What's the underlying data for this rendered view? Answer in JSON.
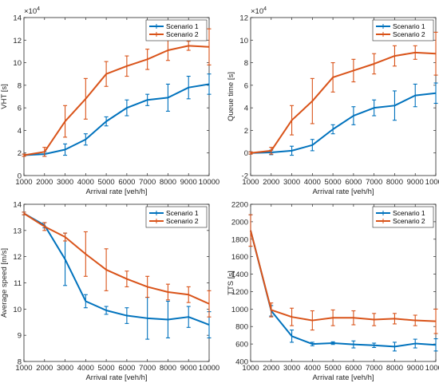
{
  "chart_data": [
    {
      "type": "line",
      "xlabel": "Arrival rate [veh/h]",
      "ylabel": "VHT [s]",
      "exponent_label": "×10",
      "exponent_power": "4",
      "xlim": [
        1000,
        10000
      ],
      "ylim": [
        0,
        14
      ],
      "xticks": [
        1000,
        2000,
        3000,
        4000,
        5000,
        6000,
        7000,
        8000,
        9000,
        10000
      ],
      "yticks": [
        0,
        2,
        4,
        6,
        8,
        10,
        12,
        14
      ],
      "grid": false,
      "legend_position": "top-right",
      "x": [
        1000,
        2000,
        3000,
        4000,
        5000,
        6000,
        7000,
        8000,
        9000,
        10000
      ],
      "series": [
        {
          "name": "Scenario 1",
          "color": "#0072BD",
          "values": [
            1.8,
            1.9,
            2.3,
            3.2,
            4.8,
            6.0,
            6.7,
            6.9,
            7.8,
            8.1
          ],
          "errors": [
            0.1,
            0.2,
            0.5,
            0.5,
            0.4,
            0.7,
            0.5,
            1.2,
            1.0,
            0.9
          ]
        },
        {
          "name": "Scenario 2",
          "color": "#D95319",
          "values": [
            1.8,
            2.1,
            4.8,
            6.8,
            9.0,
            9.7,
            10.3,
            11.1,
            11.5,
            11.4
          ],
          "errors": [
            0.1,
            0.4,
            1.4,
            1.8,
            1.1,
            0.9,
            0.9,
            0.9,
            0.4,
            1.6
          ]
        }
      ]
    },
    {
      "type": "line",
      "xlabel": "Arrival rate [veh/h]",
      "ylabel": "Queue time [s]",
      "exponent_label": "×10",
      "exponent_power": "4",
      "xlim": [
        1000,
        10000
      ],
      "ylim": [
        -2,
        12
      ],
      "xticks": [
        1000,
        2000,
        3000,
        4000,
        5000,
        6000,
        7000,
        8000,
        9000,
        10000
      ],
      "yticks": [
        -2,
        0,
        2,
        4,
        6,
        8,
        10,
        12
      ],
      "grid": false,
      "legend_position": "top-right",
      "x": [
        1000,
        2000,
        3000,
        4000,
        5000,
        6000,
        7000,
        8000,
        9000,
        10000
      ],
      "series": [
        {
          "name": "Scenario 1",
          "color": "#0072BD",
          "values": [
            0.0,
            0.05,
            0.2,
            0.7,
            2.1,
            3.3,
            4.0,
            4.2,
            5.1,
            5.3
          ],
          "errors": [
            0.1,
            0.2,
            0.4,
            0.5,
            0.4,
            0.8,
            0.7,
            1.3,
            1.0,
            0.9
          ]
        },
        {
          "name": "Scenario 2",
          "color": "#D95319",
          "values": [
            0.0,
            0.2,
            2.9,
            4.6,
            6.7,
            7.3,
            7.9,
            8.6,
            8.9,
            8.8
          ],
          "errors": [
            0.1,
            0.3,
            1.3,
            2.0,
            1.3,
            1.0,
            0.9,
            0.9,
            0.6,
            1.9
          ]
        }
      ]
    },
    {
      "type": "line",
      "xlabel": "Arrival rate [veh/h]",
      "ylabel": "Average speed [m/s]",
      "xlim": [
        1000,
        10000
      ],
      "ylim": [
        8,
        14
      ],
      "xticks": [
        1000,
        2000,
        3000,
        4000,
        5000,
        6000,
        7000,
        8000,
        9000,
        10000
      ],
      "yticks": [
        8,
        9,
        10,
        11,
        12,
        13,
        14
      ],
      "grid": false,
      "legend_position": "top-right",
      "x": [
        1000,
        2000,
        3000,
        4000,
        5000,
        6000,
        7000,
        8000,
        9000,
        10000
      ],
      "series": [
        {
          "name": "Scenario 1",
          "color": "#0072BD",
          "values": [
            13.65,
            13.2,
            11.9,
            10.3,
            9.95,
            9.75,
            9.65,
            9.6,
            9.7,
            9.4
          ],
          "errors": [
            0.05,
            0.1,
            1.0,
            0.25,
            0.15,
            0.3,
            0.8,
            0.7,
            0.4,
            0.5
          ]
        },
        {
          "name": "Scenario 2",
          "color": "#D95319",
          "values": [
            13.65,
            13.15,
            12.75,
            12.1,
            11.5,
            11.15,
            10.85,
            10.65,
            10.55,
            10.2
          ],
          "errors": [
            0.05,
            0.15,
            0.15,
            0.85,
            0.8,
            0.3,
            0.4,
            0.3,
            0.3,
            0.5
          ]
        }
      ]
    },
    {
      "type": "line",
      "xlabel": "Arrival rate [veh/h]",
      "ylabel": "TTS [s]",
      "xlim": [
        1000,
        10000
      ],
      "ylim": [
        400,
        2200
      ],
      "xticks": [
        1000,
        2000,
        3000,
        4000,
        5000,
        6000,
        7000,
        8000,
        9000,
        10000
      ],
      "yticks": [
        400,
        600,
        800,
        1000,
        1200,
        1400,
        1600,
        1800,
        2000,
        2200
      ],
      "grid": false,
      "legend_position": "top-right",
      "x": [
        1000,
        2000,
        3000,
        4000,
        5000,
        6000,
        7000,
        8000,
        9000,
        10000
      ],
      "series": [
        {
          "name": "Scenario 1",
          "color": "#0072BD",
          "values": [
            1900,
            980,
            690,
            600,
            610,
            595,
            585,
            570,
            605,
            590
          ],
          "errors": [
            180,
            60,
            70,
            20,
            15,
            40,
            25,
            50,
            50,
            70
          ]
        },
        {
          "name": "Scenario 2",
          "color": "#D95319",
          "values": [
            1900,
            990,
            910,
            870,
            900,
            900,
            880,
            890,
            870,
            860
          ],
          "errors": [
            180,
            80,
            100,
            110,
            90,
            80,
            70,
            60,
            60,
            140
          ]
        }
      ]
    }
  ]
}
